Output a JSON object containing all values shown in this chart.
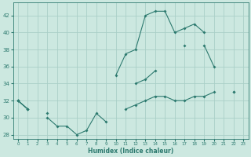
{
  "xlabel": "Humidex (Indice chaleur)",
  "x": [
    0,
    1,
    2,
    3,
    4,
    5,
    6,
    7,
    8,
    9,
    10,
    11,
    12,
    13,
    14,
    15,
    16,
    17,
    18,
    19,
    20,
    21,
    22,
    23
  ],
  "line1": [
    32,
    31,
    null,
    30,
    29,
    29,
    28,
    28.5,
    30.5,
    29.5,
    null,
    null,
    null,
    null,
    null,
    null,
    null,
    null,
    null,
    null,
    null,
    null,
    null,
    null
  ],
  "line2": [
    32,
    31,
    null,
    30.5,
    null,
    null,
    null,
    null,
    null,
    null,
    35,
    37.5,
    38,
    42,
    42.5,
    42.5,
    40,
    40.5,
    41,
    40,
    null,
    null,
    null,
    null
  ],
  "line3": [
    32,
    31,
    null,
    null,
    null,
    null,
    null,
    null,
    null,
    null,
    null,
    null,
    34,
    34.5,
    35.5,
    null,
    null,
    38.5,
    null,
    38.5,
    36,
    null,
    33,
    null
  ],
  "line4": [
    32,
    null,
    null,
    null,
    null,
    null,
    null,
    null,
    null,
    null,
    null,
    31,
    31.5,
    32,
    32.5,
    32.5,
    32,
    32,
    32.5,
    32.5,
    33,
    null,
    33,
    null
  ],
  "bg_color": "#cce8e0",
  "grid_color": "#aacfc8",
  "line_color": "#2d7a6f",
  "ylim": [
    27.5,
    43.5
  ],
  "xlim": [
    -0.5,
    23.5
  ],
  "yticks": [
    28,
    30,
    32,
    34,
    36,
    38,
    40,
    42
  ],
  "xticks": [
    0,
    1,
    2,
    3,
    4,
    5,
    6,
    7,
    8,
    9,
    10,
    11,
    12,
    13,
    14,
    15,
    16,
    17,
    18,
    19,
    20,
    21,
    22,
    23
  ]
}
